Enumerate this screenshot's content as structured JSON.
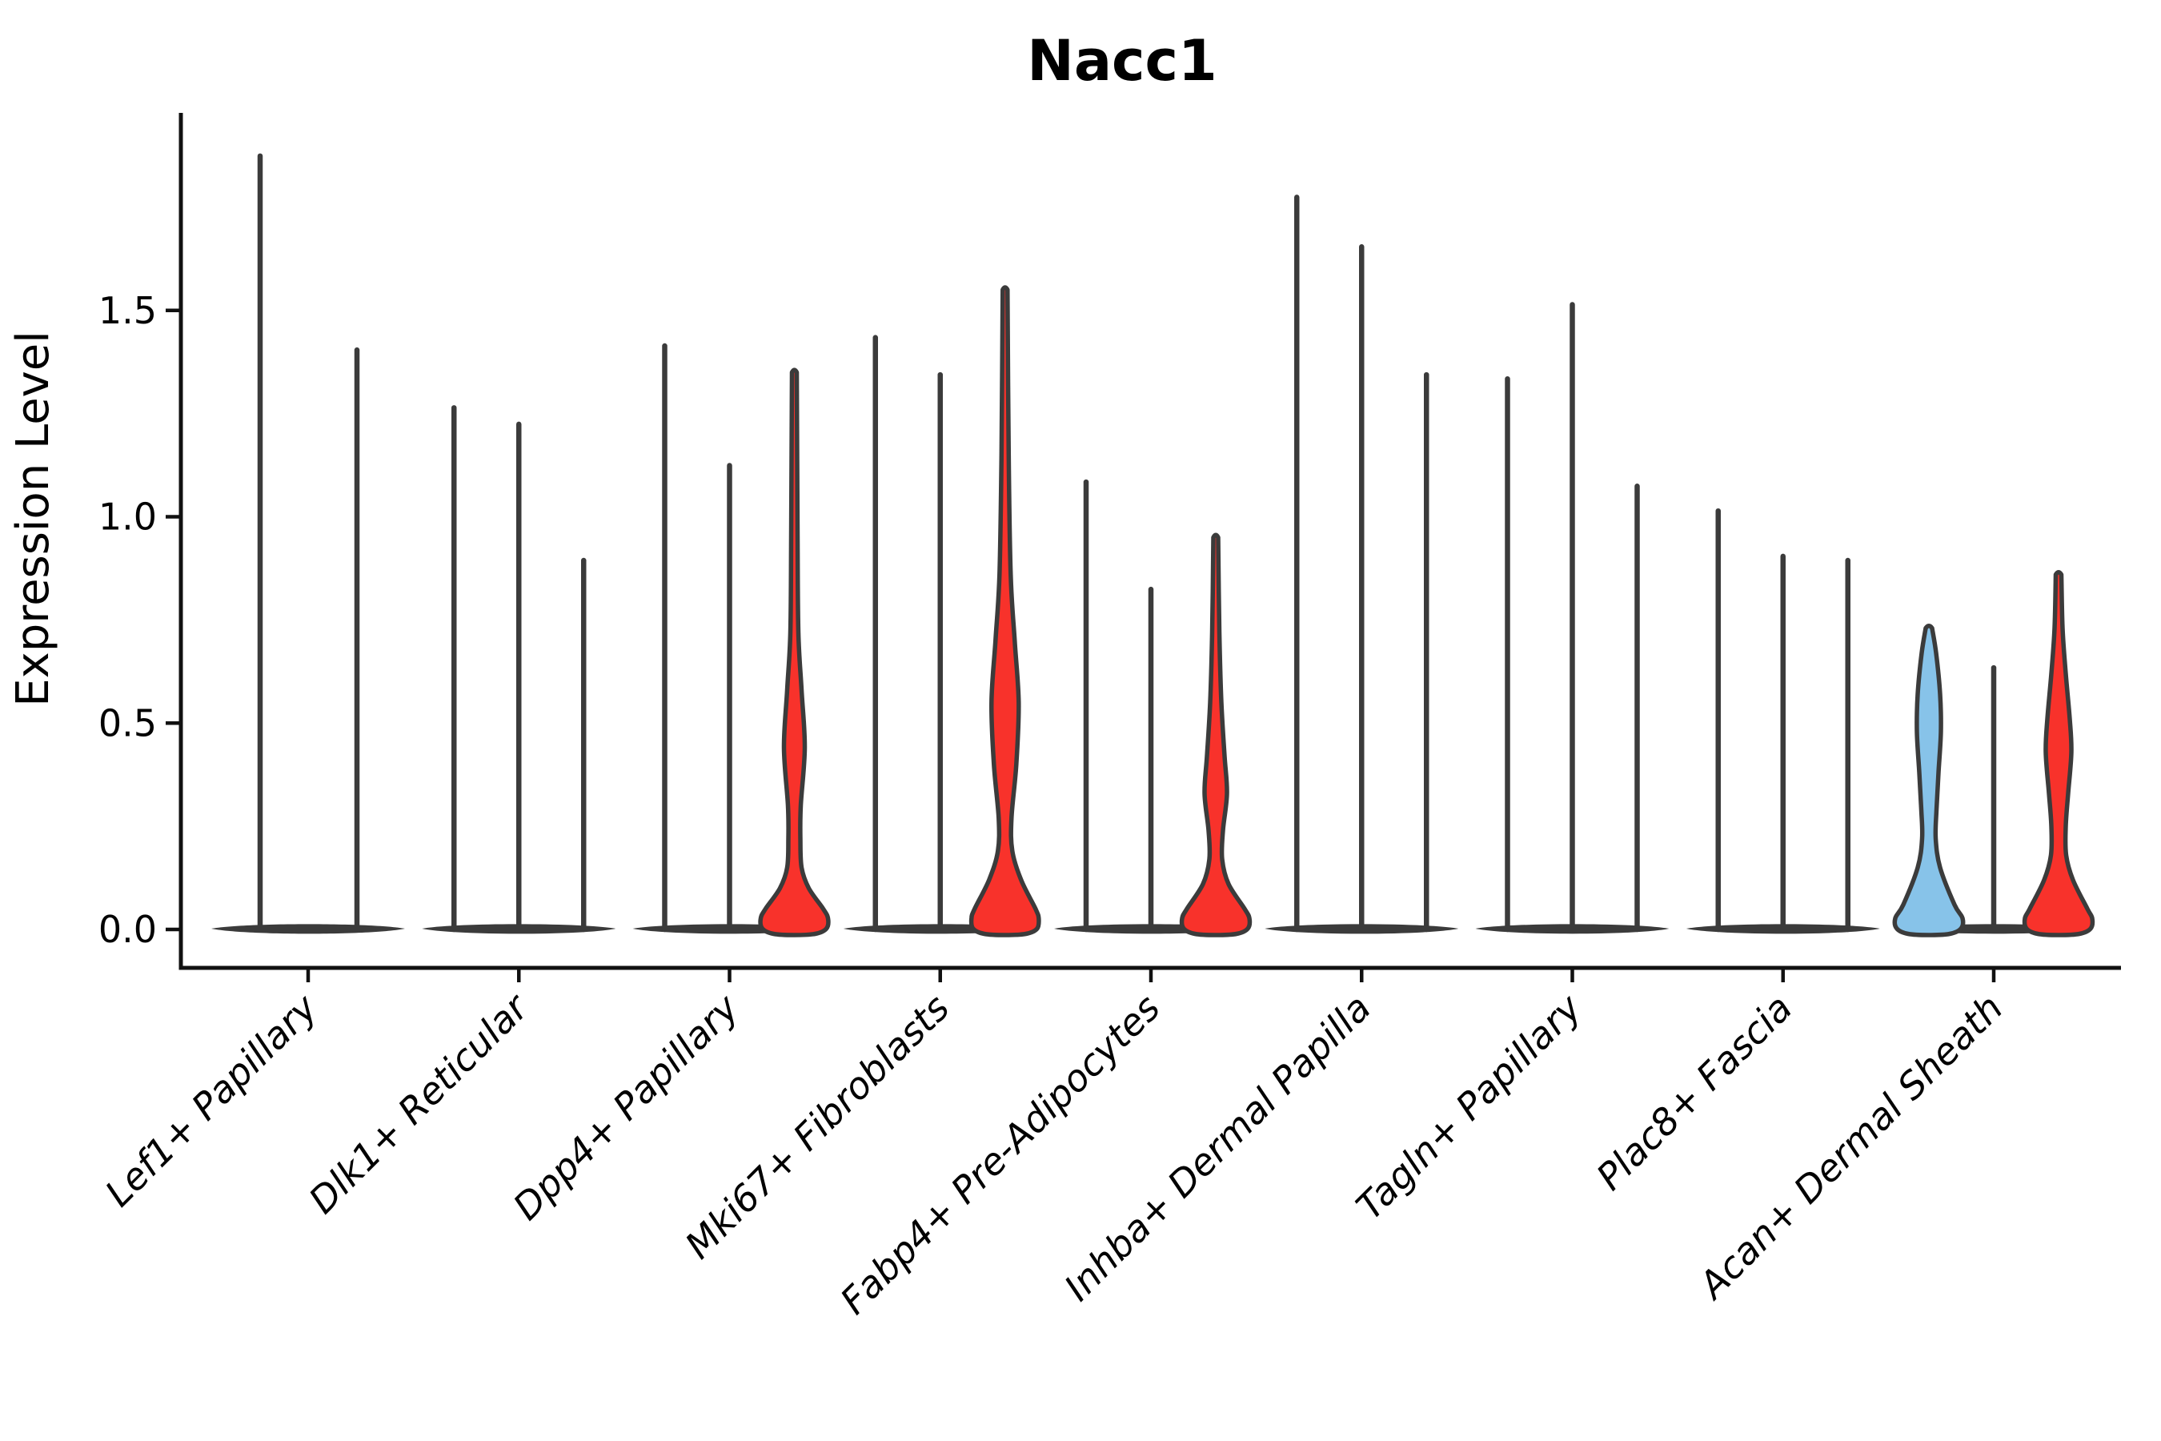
{
  "title": "Nacc1",
  "y_axis": {
    "label": "Expression Level",
    "tick_labels": [
      "0.0",
      "0.5",
      "1.0",
      "1.5"
    ],
    "tick_values": [
      0.0,
      0.5,
      1.0,
      1.5
    ]
  },
  "colors": {
    "red_fill": "#f8322b",
    "blue_fill": "#87c3e9",
    "violin_stroke": "#3b3b3b",
    "spine": "#111111",
    "background": "#ffffff"
  },
  "chart_data": {
    "type": "violin",
    "title": "Nacc1",
    "xlabel": "",
    "ylabel": "Expression Level",
    "ylim": [
      -0.1,
      1.98
    ],
    "yticks": [
      0.0,
      0.5,
      1.0,
      1.5
    ],
    "grid": false,
    "legend": "none",
    "categories": [
      "Lef1+ Papillary",
      "Dlk1+ Reticular",
      "Dpp4+ Papillary",
      "Mki67+ Fibroblasts",
      "Fabp4+ Pre-Adipocytes",
      "Inhba+ Dermal Papilla",
      "Tagln+ Papillary",
      "Plac8+ Fascia",
      "Acan+ Dermal Sheath"
    ],
    "groups": [
      {
        "category": "Lef1+ Papillary",
        "violins": [
          {
            "max": 1.88,
            "fill": "none"
          },
          {
            "max": 1.41,
            "fill": "none"
          }
        ]
      },
      {
        "category": "Dlk1+ Reticular",
        "violins": [
          {
            "max": 1.27,
            "fill": "none"
          },
          {
            "max": 1.23,
            "fill": "none"
          },
          {
            "max": 0.9,
            "fill": "none"
          }
        ]
      },
      {
        "category": "Dpp4+ Papillary",
        "violins": [
          {
            "max": 1.42,
            "fill": "none"
          },
          {
            "max": 1.13,
            "fill": "none"
          },
          {
            "max": 1.35,
            "fill": "red",
            "profile": [
              [
                1.35,
                3
              ],
              [
                0.95,
                4
              ],
              [
                0.72,
                5
              ],
              [
                0.58,
                9
              ],
              [
                0.44,
                13
              ],
              [
                0.3,
                8
              ],
              [
                0.22,
                7.5
              ],
              [
                0.15,
                9
              ],
              [
                0.1,
                18
              ],
              [
                0.05,
                36
              ]
            ]
          }
        ]
      },
      {
        "category": "Mki67+ Fibroblasts",
        "violins": [
          {
            "max": 1.44,
            "fill": "none"
          },
          {
            "max": 1.35,
            "fill": "none"
          },
          {
            "max": 1.55,
            "fill": "red",
            "profile": [
              [
                1.55,
                3
              ],
              [
                1.15,
                4.5
              ],
              [
                0.86,
                7
              ],
              [
                0.7,
                12
              ],
              [
                0.55,
                17
              ],
              [
                0.4,
                14
              ],
              [
                0.27,
                8
              ],
              [
                0.19,
                9
              ],
              [
                0.12,
                20
              ],
              [
                0.05,
                38
              ]
            ]
          }
        ]
      },
      {
        "category": "Fabp4+ Pre-Adipocytes",
        "violins": [
          {
            "max": 1.09,
            "fill": "none"
          },
          {
            "max": 0.83,
            "fill": "none"
          },
          {
            "max": 0.95,
            "fill": "red",
            "profile": [
              [
                0.95,
                3
              ],
              [
                0.72,
                4.5
              ],
              [
                0.55,
                7
              ],
              [
                0.42,
                11
              ],
              [
                0.33,
                14
              ],
              [
                0.24,
                9
              ],
              [
                0.17,
                8
              ],
              [
                0.11,
                16
              ],
              [
                0.05,
                36
              ]
            ]
          }
        ]
      },
      {
        "category": "Inhba+ Dermal Papilla",
        "violins": [
          {
            "max": 1.78,
            "fill": "none"
          },
          {
            "max": 1.66,
            "fill": "none"
          },
          {
            "max": 1.35,
            "fill": "none"
          }
        ]
      },
      {
        "category": "Tagln+ Papillary",
        "violins": [
          {
            "max": 1.34,
            "fill": "none"
          },
          {
            "max": 1.52,
            "fill": "none"
          },
          {
            "max": 1.08,
            "fill": "none"
          }
        ]
      },
      {
        "category": "Plac8+ Fascia",
        "violins": [
          {
            "max": 1.02,
            "fill": "none"
          },
          {
            "max": 0.91,
            "fill": "none"
          },
          {
            "max": 0.9,
            "fill": "none"
          }
        ]
      },
      {
        "category": "Acan+ Dermal Sheath",
        "violins": [
          {
            "max": 0.73,
            "fill": "blue",
            "profile": [
              [
                0.73,
                4
              ],
              [
                0.67,
                9
              ],
              [
                0.57,
                14
              ],
              [
                0.48,
                15
              ],
              [
                0.38,
                12
              ],
              [
                0.29,
                9.5
              ],
              [
                0.22,
                8.5
              ],
              [
                0.15,
                14
              ],
              [
                0.06,
                32
              ]
            ]
          },
          {
            "max": 0.64,
            "fill": "none"
          },
          {
            "max": 0.86,
            "fill": "red",
            "profile": [
              [
                0.86,
                3.5
              ],
              [
                0.73,
                5
              ],
              [
                0.62,
                9
              ],
              [
                0.51,
                14
              ],
              [
                0.43,
                16
              ],
              [
                0.33,
                12
              ],
              [
                0.25,
                9
              ],
              [
                0.18,
                9.5
              ],
              [
                0.12,
                18
              ],
              [
                0.05,
                36
              ]
            ]
          }
        ]
      }
    ]
  }
}
